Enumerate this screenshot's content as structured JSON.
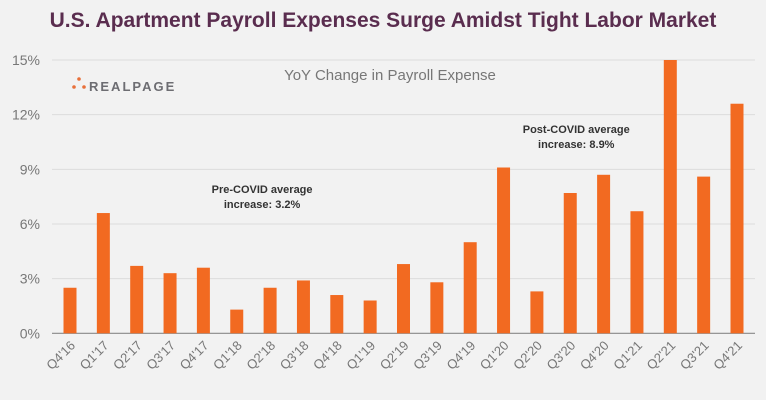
{
  "title": "U.S. Apartment Payroll Expenses Surge Amidst Tight Labor Market",
  "logo": {
    "text": "REALPAGE",
    "color": "#e8703a"
  },
  "chart_data": {
    "type": "bar",
    "title": "U.S. Apartment Payroll Expenses Surge Amidst Tight Labor Market",
    "subtitle": "YoY Change in Payroll Expense",
    "xlabel": "",
    "ylabel": "",
    "ylim": [
      0,
      15
    ],
    "yticks": [
      0,
      3,
      6,
      9,
      12,
      15
    ],
    "ytick_labels": [
      "0%",
      "3%",
      "6%",
      "9%",
      "12%",
      "15%"
    ],
    "grid": true,
    "bar_color": "#f26a21",
    "categories": [
      "Q4'16",
      "Q1'17",
      "Q2'17",
      "Q3'17",
      "Q4'17",
      "Q1'18",
      "Q2'18",
      "Q3'18",
      "Q4'18",
      "Q1'19",
      "Q2'19",
      "Q3'19",
      "Q4'19",
      "Q1'20",
      "Q2'20",
      "Q3'20",
      "Q4'20",
      "Q1'21",
      "Q2'21",
      "Q3'21",
      "Q4'21"
    ],
    "values": [
      2.5,
      6.6,
      3.7,
      3.3,
      3.6,
      1.3,
      2.5,
      2.9,
      2.1,
      1.8,
      3.8,
      2.8,
      5.0,
      9.1,
      2.3,
      7.7,
      8.7,
      6.7,
      15.0,
      8.6,
      12.6
    ],
    "annotations": [
      {
        "lines": [
          "Pre-COVID average",
          "increase: 3.2%"
        ],
        "near_category": "Q2'18"
      },
      {
        "lines": [
          "Post-COVID average",
          "increase: 8.9%"
        ],
        "near_category": "Q3'20"
      }
    ]
  }
}
